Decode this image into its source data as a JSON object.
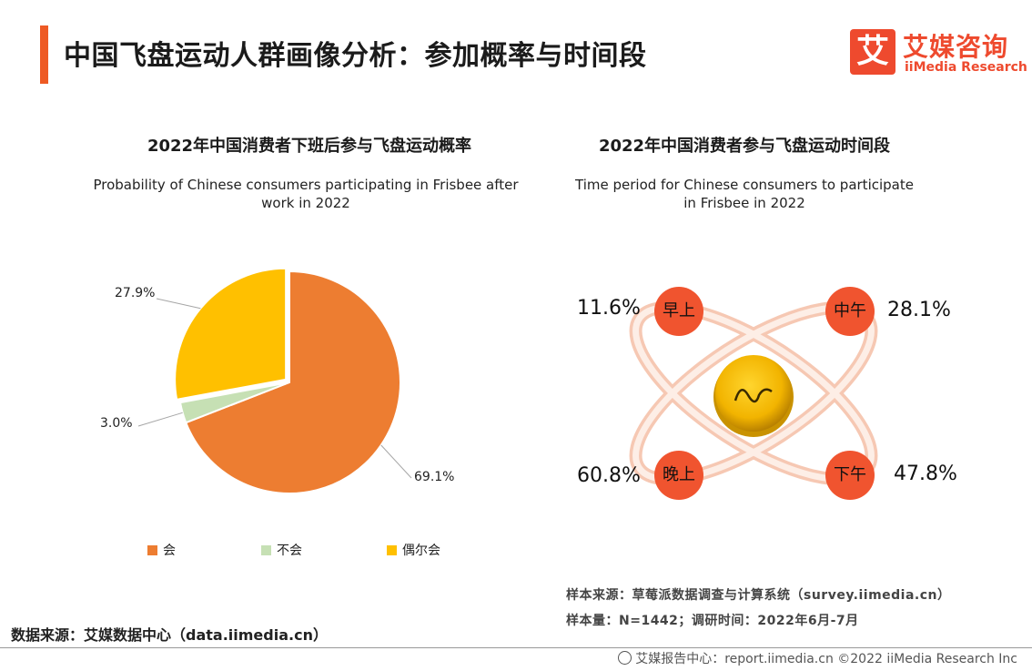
{
  "header": {
    "title": "中国飞盘运动人群画像分析：参加概率与时间段",
    "logo_mark": "艾",
    "logo_cn": "艾媒咨询",
    "logo_en": "iiMedia Research"
  },
  "chart_data": [
    {
      "type": "pie",
      "title": "2022年中国消费者下班后参与飞盘运动概率",
      "subtitle_line1": "Probability of Chinese consumers participating in Frisbee after",
      "subtitle_line2": "work in 2022",
      "categories": [
        "会",
        "不会",
        "偶尔会"
      ],
      "values": [
        69.1,
        3.0,
        27.9
      ],
      "labels": [
        "69.1%",
        "3.0%",
        "27.9%"
      ],
      "colors": [
        "#ed7d31",
        "#c6e0b4",
        "#ffc000"
      ],
      "exploded": "偶尔会",
      "legend_position": "bottom"
    },
    {
      "type": "table",
      "title": "2022年中国消费者参与飞盘运动时间段",
      "subtitle_line1": "Time period for Chinese consumers to participate",
      "subtitle_line2": "in Frisbee in 2022",
      "categories": [
        "早上",
        "中午",
        "晚上",
        "下午"
      ],
      "values": [
        11.6,
        28.1,
        60.8,
        47.8
      ],
      "labels": [
        "11.6%",
        "28.1%",
        "60.8%",
        "47.8%"
      ],
      "node_color": "#f0542f",
      "orbit_color": "#fbd9c8"
    }
  ],
  "source": {
    "sample_source": "样本来源：草莓派数据调查与计算系统（survey.iimedia.cn）",
    "sample_size": "样本量：N=1442；调研时间：2022年6月-7月",
    "data_source": "数据来源：艾媒数据中心（data.iimedia.cn）"
  },
  "footer": {
    "text": "艾媒报告中心：report.iimedia.cn  ©2022  iiMedia Research  Inc"
  }
}
